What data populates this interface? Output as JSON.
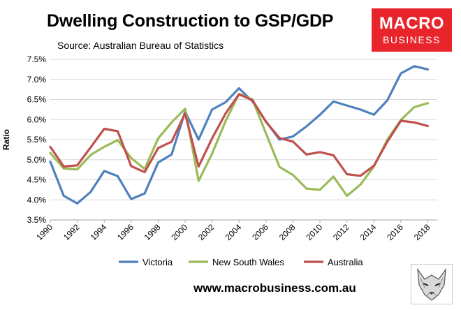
{
  "header": {
    "title": "Dwelling Construction to GSP/GDP",
    "source": "Source: Australian Bureau of Statistics"
  },
  "logo": {
    "line1": "MACRO",
    "line2": "BUSINESS"
  },
  "footer": {
    "website": "www.macrobusiness.com.au"
  },
  "chart_data": {
    "type": "line",
    "title": "Dwelling Construction to GSP/GDP",
    "xlabel": "",
    "ylabel": "Ratio",
    "xlim": [
      1990,
      2018.7
    ],
    "ylim": [
      3.5,
      7.5
    ],
    "x_ticks": [
      "1990",
      "1992",
      "1994",
      "1996",
      "1998",
      "2000",
      "2002",
      "2004",
      "2006",
      "2008",
      "2010",
      "2012",
      "2014",
      "2016",
      "2018"
    ],
    "y_ticks": [
      "3.5%",
      "4.0%",
      "4.5%",
      "5.0%",
      "5.5%",
      "6.0%",
      "6.5%",
      "7.0%",
      "7.5%"
    ],
    "legend_position": "bottom",
    "grid": true,
    "x": [
      1990,
      1991,
      1992,
      1993,
      1994,
      1995,
      1996,
      1997,
      1998,
      1999,
      2000,
      2001,
      2002,
      2003,
      2004,
      2005,
      2006,
      2007,
      2008,
      2009,
      2010,
      2011,
      2012,
      2013,
      2014,
      2015,
      2016,
      2017,
      2018
    ],
    "series": [
      {
        "name": "Victoria",
        "color": "#4f81bd",
        "values": [
          4.95,
          4.1,
          3.91,
          4.2,
          4.72,
          4.59,
          4.02,
          4.16,
          4.93,
          5.13,
          6.2,
          5.5,
          6.25,
          6.43,
          6.78,
          6.45,
          5.95,
          5.5,
          5.58,
          5.83,
          6.12,
          6.45,
          6.35,
          6.25,
          6.12,
          6.48,
          7.15,
          7.33,
          7.25
        ]
      },
      {
        "name": "New South Wales",
        "color": "#9bbb59",
        "values": [
          5.17,
          4.78,
          4.76,
          5.12,
          5.32,
          5.49,
          5.04,
          4.77,
          5.53,
          5.93,
          6.27,
          4.47,
          5.15,
          5.96,
          6.64,
          6.5,
          5.65,
          4.82,
          4.62,
          4.28,
          4.25,
          4.58,
          4.1,
          4.38,
          4.83,
          5.5,
          5.99,
          6.31,
          6.41
        ]
      },
      {
        "name": "Australia",
        "color": "#c0504d",
        "values": [
          5.32,
          4.83,
          4.86,
          5.31,
          5.77,
          5.71,
          4.84,
          4.69,
          5.29,
          5.45,
          6.15,
          4.83,
          5.53,
          6.15,
          6.63,
          6.48,
          5.94,
          5.54,
          5.45,
          5.13,
          5.19,
          5.11,
          4.64,
          4.6,
          4.85,
          5.45,
          5.97,
          5.93,
          5.84
        ]
      }
    ]
  }
}
